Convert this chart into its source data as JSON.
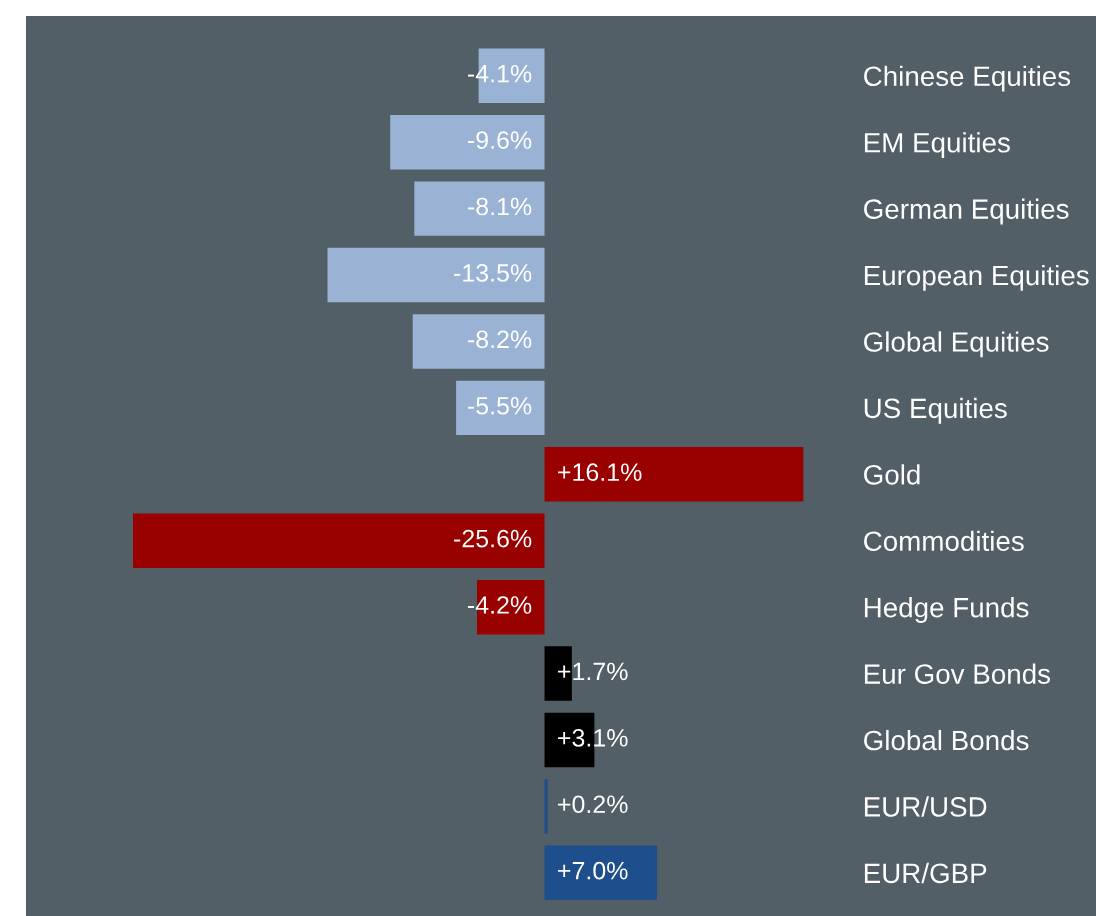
{
  "chart_data": {
    "type": "bar",
    "orientation": "horizontal",
    "categories": [
      "Chinese Equities",
      "EM Equities",
      "German Equities",
      "European Equities",
      "Global Equities",
      "US Equities",
      "Gold",
      "Commodities",
      "Hedge Funds",
      "Eur Gov Bonds",
      "Global Bonds",
      "EUR/USD",
      "EUR/GBP"
    ],
    "values": [
      -4.1,
      -9.6,
      -8.1,
      -13.5,
      -8.2,
      -5.5,
      16.1,
      -25.6,
      -4.2,
      1.7,
      3.1,
      0.2,
      7.0
    ],
    "value_labels": [
      "-4.1%",
      "-9.6%",
      "-8.1%",
      "-13.5%",
      "-8.2%",
      "-5.5%",
      "+16.1%",
      "-25.6%",
      "-4.2%",
      "+1.7%",
      "+3.1%",
      "+0.2%",
      "+7.0%"
    ],
    "colors": [
      "#9ab3d5",
      "#9ab3d5",
      "#9ab3d5",
      "#9ab3d5",
      "#9ab3d5",
      "#9ab3d5",
      "#990000",
      "#990000",
      "#990000",
      "#000000",
      "#000000",
      "#1f4e8c",
      "#1f4e8c"
    ],
    "grid": false,
    "legend": false
  }
}
